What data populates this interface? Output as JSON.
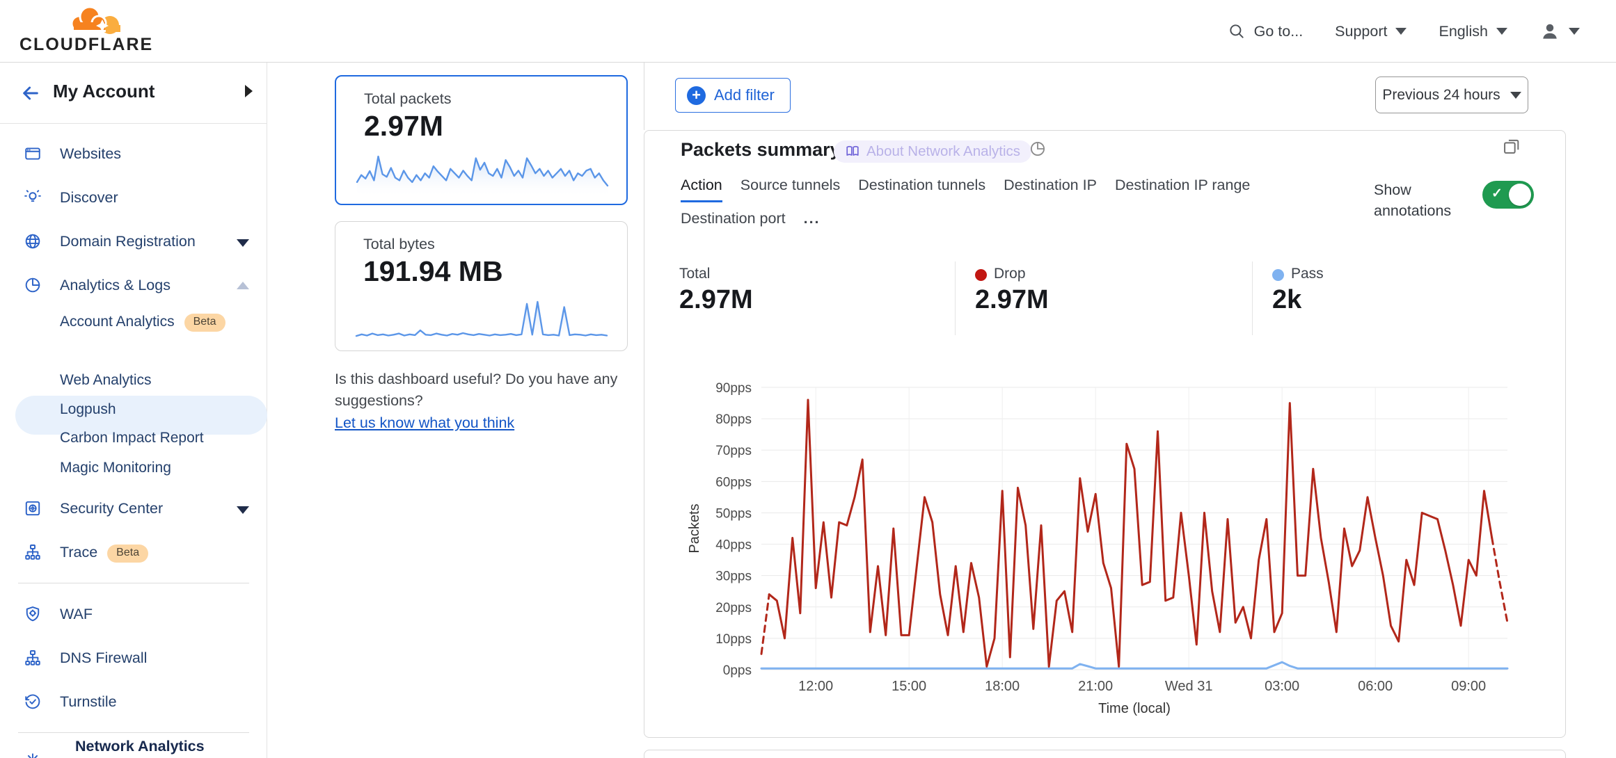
{
  "topbar": {
    "logo_text": "CLOUDFLARE",
    "goto": "Go to...",
    "support": "Support",
    "language": "English"
  },
  "sidebar": {
    "account_label": "My Account",
    "nav": [
      {
        "label": "Websites"
      },
      {
        "label": "Discover"
      },
      {
        "label": "Domain Registration"
      },
      {
        "label": "Analytics & Logs"
      }
    ],
    "analytics_items": [
      {
        "label": "Account Analytics",
        "badge": "Beta"
      },
      {
        "label": "Network Analytics",
        "selected": true
      },
      {
        "label": "Web Analytics"
      },
      {
        "label": "Logpush"
      },
      {
        "label": "Carbon Impact Report"
      },
      {
        "label": "Magic Monitoring"
      }
    ],
    "nav2": [
      {
        "label": "Security Center"
      },
      {
        "label": "Trace",
        "badge": "Beta"
      }
    ],
    "nav3": [
      {
        "label": "WAF"
      },
      {
        "label": "DNS Firewall"
      },
      {
        "label": "Turnstile"
      }
    ]
  },
  "midcol": {
    "cards": [
      {
        "title": "Total packets",
        "value": "2.97M",
        "active": true
      },
      {
        "title": "Total bytes",
        "value": "191.94 MB",
        "active": false
      }
    ],
    "feedback_text": "Is this dashboard useful? Do you have any suggestions?",
    "feedback_link": "Let us know what you think"
  },
  "main": {
    "add_filter": "Add filter",
    "time_range": "Previous 24 hours",
    "panel_title": "Packets summary",
    "about_badge": "About Network Analytics",
    "tabs": [
      {
        "label": "Action",
        "active": true
      },
      {
        "label": "Source tunnels"
      },
      {
        "label": "Destination tunnels"
      },
      {
        "label": "Destination IP"
      },
      {
        "label": "Destination IP range"
      },
      {
        "label": "Destination port"
      }
    ],
    "more_tabs": "...",
    "show_annotations": "Show annotations",
    "show_annotations_on": true,
    "stats": [
      {
        "label": "Total",
        "value": "2.97M",
        "dot": null
      },
      {
        "label": "Drop",
        "value": "2.97M",
        "dot": "#c21712"
      },
      {
        "label": "Pass",
        "value": "2k",
        "dot": "#7fb2f0"
      }
    ]
  },
  "colors": {
    "accent_blue": "#1f6ae0",
    "link_blue": "#1355c6",
    "drop_red": "#b2271a",
    "pass_blue": "#7fb2f0",
    "toggle_green": "#1f9a50",
    "beta_badge_bg": "#fcd6a4",
    "selected_item_bg": "#e8f1fc",
    "sparkline_blue": "#5b96e8"
  },
  "chart_data": [
    {
      "type": "line",
      "title": "Packets summary",
      "xlabel": "Time (local)",
      "ylabel": "Packets",
      "y_unit": "pps",
      "ylim": [
        0,
        90
      ],
      "y_tick_step": 10,
      "grid": true,
      "legend": "none (stats row above serves as legend)",
      "x_ticks": [
        "12:00",
        "15:00",
        "18:00",
        "21:00",
        "Wed 31",
        "03:00",
        "06:00",
        "09:00"
      ],
      "x_tick_start_index": 7,
      "x_tick_step_points": 12,
      "dashed_head_segments": 1,
      "dashed_tail_segments": 2,
      "series": [
        {
          "name": "Drop",
          "color": "#b2271a",
          "values": [
            5,
            24,
            22,
            10,
            42,
            18,
            86,
            26,
            47,
            23,
            47,
            46,
            55,
            67,
            12,
            33,
            11,
            45,
            11,
            11,
            33,
            55,
            47,
            24,
            11,
            33,
            12,
            34,
            23,
            1,
            10,
            57,
            4,
            58,
            46,
            13,
            46,
            1,
            22,
            25,
            12,
            61,
            44,
            56,
            34,
            26,
            1,
            72,
            64,
            27,
            28,
            76,
            22,
            23,
            50,
            30,
            8,
            50,
            25,
            12,
            48,
            15,
            20,
            10,
            35,
            48,
            12,
            18,
            85,
            30,
            30,
            64,
            42,
            28,
            12,
            45,
            33,
            38,
            55,
            42,
            30,
            14,
            9,
            35,
            27,
            50,
            49,
            48,
            38,
            27,
            14,
            35,
            30,
            57,
            42,
            28,
            15
          ]
        },
        {
          "name": "Pass",
          "color": "#7fb2f0",
          "values": [
            0.4,
            0.4,
            0.4,
            0.4,
            0.4,
            0.4,
            0.4,
            0.4,
            0.4,
            0.4,
            0.4,
            0.4,
            0.4,
            0.4,
            0.4,
            0.4,
            0.4,
            0.4,
            0.4,
            0.4,
            0.4,
            0.4,
            0.4,
            0.4,
            0.4,
            0.4,
            0.4,
            0.4,
            0.4,
            0.4,
            0.4,
            0.4,
            0.4,
            0.4,
            0.4,
            0.4,
            0.4,
            0.4,
            0.4,
            0.4,
            0.4,
            1.8,
            1.1,
            0.4,
            0.4,
            0.4,
            0.4,
            0.4,
            0.4,
            0.4,
            0.4,
            0.4,
            0.4,
            0.4,
            0.4,
            0.4,
            0.4,
            0.4,
            0.4,
            0.4,
            0.4,
            0.4,
            0.4,
            0.4,
            0.4,
            0.4,
            1.4,
            2.4,
            1.2,
            0.4,
            0.4,
            0.4,
            0.4,
            0.4,
            0.4,
            0.4,
            0.4,
            0.4,
            0.4,
            0.4,
            0.4,
            0.4,
            0.4,
            0.4,
            0.4,
            0.4,
            0.4,
            0.4,
            0.4,
            0.4,
            0.4,
            0.4,
            0.4,
            0.4,
            0.4,
            0.4,
            0.4
          ]
        }
      ]
    },
    {
      "type": "sparkline",
      "name": "Total packets trend",
      "color": "#5b96e8",
      "values": [
        30,
        46,
        38,
        55,
        34,
        88,
        48,
        42,
        62,
        40,
        34,
        56,
        40,
        30,
        46,
        34,
        50,
        40,
        66,
        54,
        44,
        34,
        60,
        50,
        40,
        56,
        44,
        34,
        84,
        58,
        74,
        50,
        44,
        60,
        40,
        80,
        64,
        44,
        56,
        40,
        84,
        68,
        50,
        60,
        44,
        56,
        40,
        50,
        60,
        44,
        56,
        34,
        50,
        44,
        56,
        60,
        40,
        50,
        34,
        22
      ]
    },
    {
      "type": "sparkline",
      "name": "Total bytes trend",
      "color": "#5b96e8",
      "values": [
        12,
        16,
        13,
        18,
        14,
        16,
        13,
        15,
        18,
        13,
        16,
        14,
        26,
        15,
        14,
        18,
        15,
        13,
        17,
        15,
        19,
        16,
        14,
        17,
        15,
        13,
        16,
        14,
        15,
        17,
        14,
        16,
        92,
        15,
        97,
        16,
        14,
        15,
        13,
        84,
        14,
        16,
        15,
        13,
        16,
        14,
        15,
        13
      ]
    }
  ]
}
